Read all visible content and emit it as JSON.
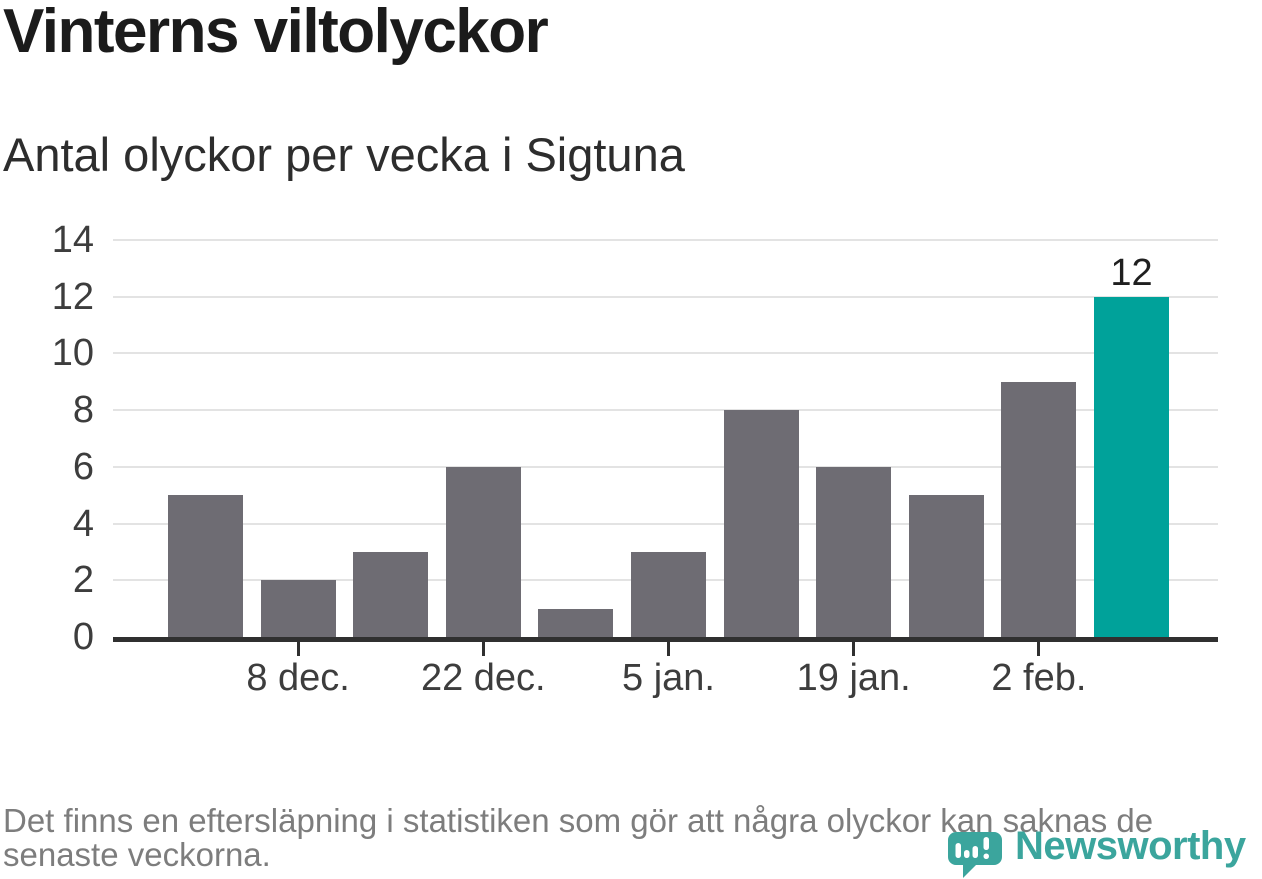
{
  "header": {
    "title": "Vinterns viltolyckor",
    "subtitle": "Antal olyckor per vecka i Sigtuna"
  },
  "chart_data": {
    "type": "bar",
    "title": "Vinterns viltolyckor",
    "subtitle": "Antal olyckor per vecka i Sigtuna",
    "n_bars": 11,
    "values": [
      5,
      2,
      3,
      6,
      1,
      3,
      8,
      6,
      5,
      9,
      12
    ],
    "highlight_index": 10,
    "value_labels": [
      {
        "index": 10,
        "text": "12"
      }
    ],
    "x_ticks": [
      {
        "label": "8 dec.",
        "bar_index": 1
      },
      {
        "label": "22 dec.",
        "bar_index": 3
      },
      {
        "label": "5 jan.",
        "bar_index": 5
      },
      {
        "label": "19 jan.",
        "bar_index": 7
      },
      {
        "label": "2 feb.",
        "bar_index": 9
      }
    ],
    "y_ticks": [
      0,
      2,
      4,
      6,
      8,
      10,
      12,
      14
    ],
    "ylim": [
      0,
      14
    ],
    "grid": "horizontal",
    "legend": "none",
    "bar_color": "#6e6c73",
    "highlight_color": "#00a29a"
  },
  "footer": {
    "note": "Det finns en eftersläpning i statistiken som gör att några olyckor kan saknas de senaste veckorna.",
    "brand": "Newsworthy",
    "brand_color": "#3ba59d",
    "logo_icon": "speech-bubble-bar-chart-icon"
  }
}
